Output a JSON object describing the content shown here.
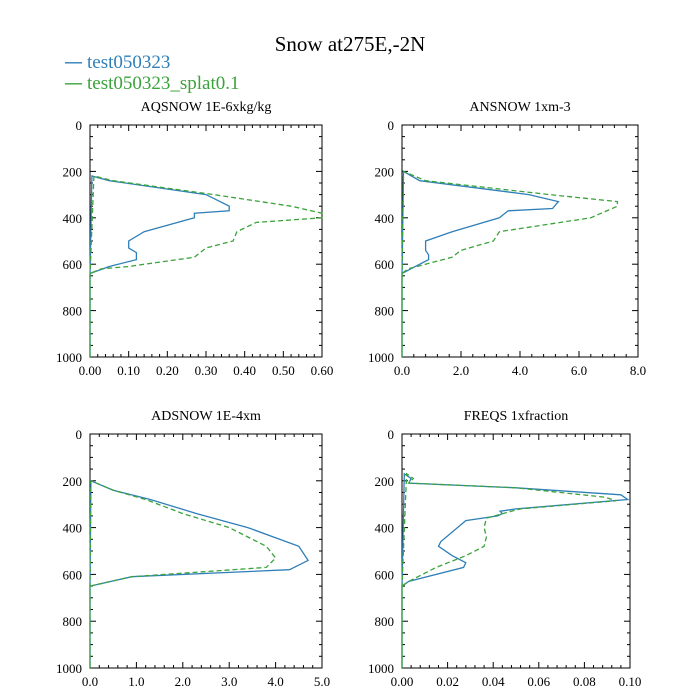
{
  "figure": {
    "title": "Snow at275E,-2N"
  },
  "legend": {
    "items": [
      {
        "label": "test050323",
        "color": "#2f7fb8",
        "swatch": "—"
      },
      {
        "label": "test050323_splat0.1",
        "color": "#3aa33a",
        "swatch": "—"
      }
    ]
  },
  "chart_data": [
    {
      "type": "line",
      "title": "AQSNOW  1E-6xkg/kg",
      "xlim": [
        0,
        0.6
      ],
      "ylim": [
        1000,
        0
      ],
      "xticks": [
        0,
        0.1,
        0.2,
        0.3,
        0.4,
        0.5,
        0.6
      ],
      "xtick_labels": [
        "0.00",
        "0.10",
        "0.20",
        "0.30",
        "0.40",
        "0.50",
        "0.60"
      ],
      "yticks": [
        0,
        200,
        400,
        600,
        800,
        1000
      ],
      "ytick_labels": [
        "0",
        "200",
        "400",
        "600",
        "800",
        "1000"
      ],
      "series": [
        {
          "name": "test050323",
          "color": "#2f7fb8",
          "dash": "",
          "x": [
            0,
            0.0,
            0.005,
            0.05,
            0.3,
            0.36,
            0.36,
            0.27,
            0.27,
            0.14,
            0.1,
            0.1,
            0.12,
            0.12,
            0.05,
            0.0,
            0.0
          ],
          "y": [
            1000,
            650,
            220,
            240,
            300,
            350,
            370,
            380,
            400,
            460,
            500,
            530,
            550,
            580,
            610,
            640,
            1000
          ]
        },
        {
          "name": "test050323_splat0.1",
          "color": "#3aa33a",
          "dash": "5,3",
          "x": [
            0,
            0.0,
            0.01,
            0.06,
            0.32,
            0.52,
            0.6,
            0.6,
            0.43,
            0.38,
            0.37,
            0.3,
            0.27,
            0.1,
            0.03,
            0.0,
            0.0
          ],
          "y": [
            1000,
            650,
            220,
            240,
            300,
            350,
            380,
            400,
            420,
            460,
            500,
            530,
            570,
            610,
            620,
            640,
            1000
          ]
        }
      ]
    },
    {
      "type": "line",
      "title": "ANSNOW  1xm-3",
      "xlim": [
        0,
        8
      ],
      "ylim": [
        1000,
        0
      ],
      "xticks": [
        0,
        2,
        4,
        6,
        8
      ],
      "xtick_labels": [
        "0.0",
        "2.0",
        "4.0",
        "6.0",
        "8.0"
      ],
      "yticks": [
        0,
        200,
        400,
        600,
        800,
        1000
      ],
      "ytick_labels": [
        "0",
        "200",
        "400",
        "600",
        "800",
        "1000"
      ],
      "series": [
        {
          "name": "test050323",
          "color": "#2f7fb8",
          "dash": "",
          "x": [
            0,
            0.0,
            0.05,
            0.6,
            4.3,
            5.3,
            5.1,
            3.6,
            3.3,
            1.7,
            0.8,
            0.8,
            0.9,
            0.9,
            0.3,
            0.0,
            0.0
          ],
          "y": [
            1000,
            650,
            200,
            240,
            300,
            330,
            360,
            370,
            400,
            460,
            500,
            540,
            560,
            580,
            620,
            640,
            1000
          ]
        },
        {
          "name": "test050323_splat0.1",
          "color": "#3aa33a",
          "dash": "5,3",
          "x": [
            0,
            0.0,
            0.05,
            0.8,
            5.0,
            7.3,
            7.3,
            6.4,
            3.3,
            3.1,
            2.0,
            1.7,
            0.8,
            0.2,
            0.0,
            0.0
          ],
          "y": [
            1000,
            650,
            200,
            240,
            300,
            330,
            350,
            400,
            460,
            500,
            540,
            570,
            600,
            620,
            640,
            1000
          ]
        }
      ]
    },
    {
      "type": "line",
      "title": "ADSNOW  1E-4xm",
      "xlim": [
        0,
        5
      ],
      "ylim": [
        1000,
        0
      ],
      "xticks": [
        0,
        1,
        2,
        3,
        4,
        5
      ],
      "xtick_labels": [
        "0.0",
        "1.0",
        "2.0",
        "3.0",
        "4.0",
        "5.0"
      ],
      "yticks": [
        0,
        200,
        400,
        600,
        800,
        1000
      ],
      "ytick_labels": [
        "0",
        "200",
        "400",
        "600",
        "800",
        "1000"
      ],
      "series": [
        {
          "name": "test050323",
          "color": "#2f7fb8",
          "dash": "",
          "x": [
            0,
            0.0,
            0.02,
            0.5,
            1.3,
            2.3,
            3.4,
            4.5,
            4.7,
            4.3,
            0.9,
            0.0,
            0.0
          ],
          "y": [
            1000,
            650,
            200,
            240,
            280,
            340,
            400,
            480,
            540,
            580,
            610,
            650,
            1000
          ]
        },
        {
          "name": "test050323_splat0.1",
          "color": "#3aa33a",
          "dash": "5,3",
          "x": [
            0,
            0.0,
            0.02,
            0.5,
            1.2,
            2.0,
            3.0,
            3.8,
            4.0,
            3.8,
            0.9,
            0.0,
            0.0
          ],
          "y": [
            1000,
            650,
            200,
            240,
            280,
            340,
            400,
            480,
            530,
            570,
            610,
            650,
            1000
          ]
        }
      ]
    },
    {
      "type": "line",
      "title": "FREQS  1xfraction",
      "xlim": [
        0,
        0.1
      ],
      "ylim": [
        1000,
        0
      ],
      "xticks": [
        0,
        0.02,
        0.04,
        0.06,
        0.08,
        0.1
      ],
      "xtick_labels": [
        "0.00",
        "0.02",
        "0.04",
        "0.06",
        "0.08",
        "0.10"
      ],
      "yticks": [
        0,
        200,
        400,
        600,
        800,
        1000
      ],
      "ytick_labels": [
        "0",
        "200",
        "400",
        "600",
        "800",
        "1000"
      ],
      "series": [
        {
          "name": "test050323",
          "color": "#2f7fb8",
          "dash": "",
          "x": [
            0,
            0.0,
            0.001,
            0.004,
            0.003,
            0.05,
            0.096,
            0.099,
            0.05,
            0.043,
            0.044,
            0.042,
            0.028,
            0.017,
            0.016,
            0.022,
            0.028,
            0.027,
            0.003,
            0.0,
            0.0
          ],
          "y": [
            1000,
            650,
            170,
            190,
            210,
            230,
            260,
            280,
            320,
            330,
            340,
            350,
            370,
            460,
            480,
            520,
            550,
            570,
            630,
            650,
            1000
          ]
        },
        {
          "name": "test050323_splat0.1",
          "color": "#3aa33a",
          "dash": "5,3",
          "x": [
            0,
            0.0,
            0.002,
            0.005,
            0.003,
            0.05,
            0.089,
            0.094,
            0.052,
            0.048,
            0.037,
            0.036,
            0.037,
            0.036,
            0.028,
            0.015,
            0.003,
            0.0,
            0.0
          ],
          "y": [
            1000,
            650,
            170,
            190,
            210,
            230,
            270,
            285,
            320,
            330,
            360,
            400,
            440,
            480,
            520,
            570,
            630,
            650,
            1000
          ]
        }
      ]
    }
  ]
}
